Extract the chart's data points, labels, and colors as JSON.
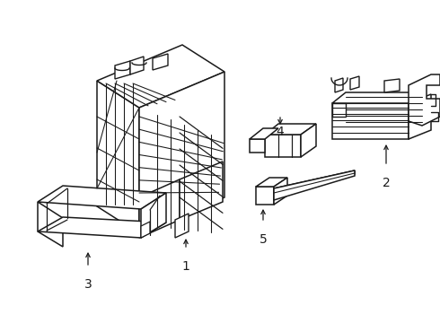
{
  "background_color": "#ffffff",
  "line_color": "#1a1a1a",
  "line_width": 1.1,
  "fig_width": 4.9,
  "fig_height": 3.6,
  "dpi": 100
}
